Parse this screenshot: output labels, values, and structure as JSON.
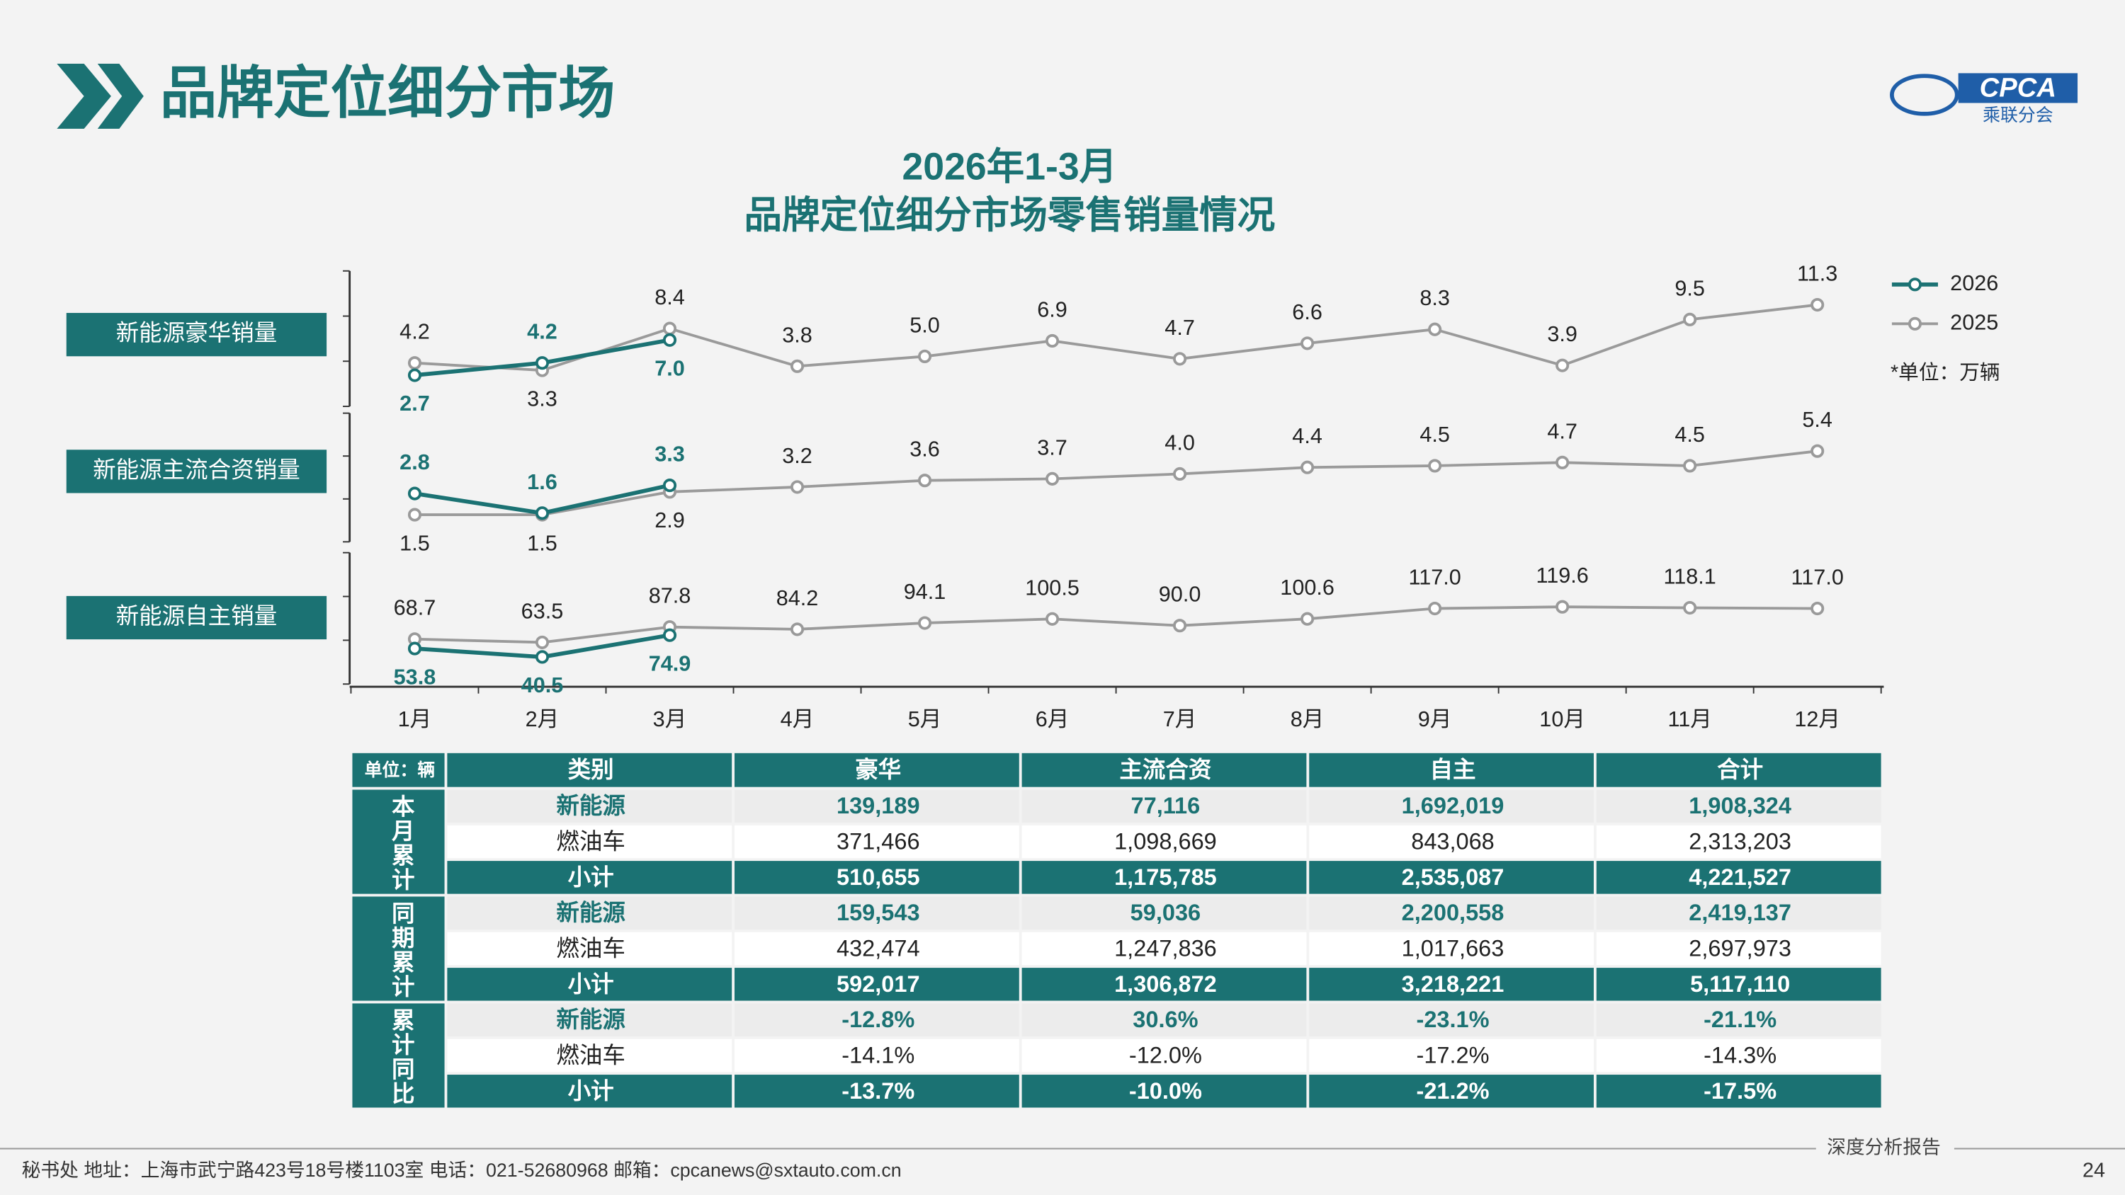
{
  "header": {
    "title": "品牌定位细分市场",
    "logo_text": "CPCA",
    "logo_sub": "乘联分会"
  },
  "chart_data": {
    "type": "line",
    "title": "2026年1-3月",
    "subtitle": "品牌定位细分市场零售销量情况",
    "unit_note": "*单位：万辆",
    "categories": [
      "1月",
      "2月",
      "3月",
      "4月",
      "5月",
      "6月",
      "7月",
      "8月",
      "9月",
      "10月",
      "11月",
      "12月"
    ],
    "series": [
      {
        "name": "2026",
        "color": "#1b7273"
      },
      {
        "name": "2025",
        "color": "#9a9a9a"
      }
    ],
    "panels": [
      {
        "title": "新能源豪华销量",
        "values": [
          [
            2.7,
            4.2,
            7.0,
            null,
            null,
            null,
            null,
            null,
            null,
            null,
            null,
            null
          ],
          [
            4.2,
            3.3,
            8.4,
            3.8,
            5.0,
            6.9,
            4.7,
            6.6,
            8.3,
            3.9,
            9.5,
            11.3
          ]
        ],
        "value_labels": [
          [
            "2.7",
            "4.2",
            "7.0",
            null,
            null,
            null,
            null,
            null,
            null,
            null,
            null,
            null
          ],
          [
            "4.2",
            "3.3",
            "8.4",
            "3.8",
            "5.0",
            "6.9",
            "4.7",
            "6.6",
            "8.3",
            "3.9",
            "9.5",
            "11.3"
          ]
        ]
      },
      {
        "title": "新能源主流合资销量",
        "values": [
          [
            2.8,
            1.6,
            3.3,
            null,
            null,
            null,
            null,
            null,
            null,
            null,
            null,
            null
          ],
          [
            1.5,
            1.5,
            2.9,
            3.2,
            3.6,
            3.7,
            4.0,
            4.4,
            4.5,
            4.7,
            4.5,
            5.4
          ]
        ],
        "value_labels": [
          [
            "2.8",
            "1.6",
            "3.3",
            null,
            null,
            null,
            null,
            null,
            null,
            null,
            null,
            null
          ],
          [
            "1.5",
            "1.5",
            "2.9",
            "3.2",
            "3.6",
            "3.7",
            "4.0",
            "4.4",
            "4.5",
            "4.7",
            "4.5",
            "5.4"
          ]
        ]
      },
      {
        "title": "新能源自主销量",
        "values": [
          [
            53.8,
            40.5,
            74.9,
            null,
            null,
            null,
            null,
            null,
            null,
            null,
            null,
            null
          ],
          [
            68.7,
            63.5,
            87.8,
            84.2,
            94.1,
            100.5,
            90.0,
            100.6,
            117.0,
            119.6,
            118.1,
            117.0
          ]
        ],
        "value_labels": [
          [
            "53.8",
            "40.5",
            "74.9",
            null,
            null,
            null,
            null,
            null,
            null,
            null,
            null,
            null
          ],
          [
            "68.7",
            "63.5",
            "87.8",
            "84.2",
            "94.1",
            "100.5",
            "90.0",
            "100.6",
            "117.0",
            "119.6",
            "118.1",
            "117.0"
          ]
        ]
      }
    ]
  },
  "table": {
    "header": [
      "单位：辆",
      "类别",
      "豪华",
      "主流合资",
      "自主",
      "合计"
    ],
    "groups": [
      {
        "label": "本月累计",
        "rows": [
          [
            "新能源",
            "139,189",
            "77,116",
            "1,692,019",
            "1,908,324"
          ],
          [
            "燃油车",
            "371,466",
            "1,098,669",
            "843,068",
            "2,313,203"
          ],
          [
            "小计",
            "510,655",
            "1,175,785",
            "2,535,087",
            "4,221,527"
          ]
        ]
      },
      {
        "label": "同期累计",
        "rows": [
          [
            "新能源",
            "159,543",
            "59,036",
            "2,200,558",
            "2,419,137"
          ],
          [
            "燃油车",
            "432,474",
            "1,247,836",
            "1,017,663",
            "2,697,973"
          ],
          [
            "小计",
            "592,017",
            "1,306,872",
            "3,218,221",
            "5,117,110"
          ]
        ]
      },
      {
        "label": "累计同比",
        "rows": [
          [
            "新能源",
            "-12.8%",
            "30.6%",
            "-23.1%",
            "-21.1%"
          ],
          [
            "燃油车",
            "-14.1%",
            "-12.0%",
            "-17.2%",
            "-14.3%"
          ],
          [
            "小计",
            "-13.7%",
            "-10.0%",
            "-21.2%",
            "-17.5%"
          ]
        ]
      }
    ]
  },
  "footer": {
    "report": "深度分析报告",
    "contact": "秘书处  地址：上海市武宁路423号18号楼1103室  电话：021-52680968  邮箱：cpcanews@sxtauto.com.cn",
    "page": "24"
  }
}
